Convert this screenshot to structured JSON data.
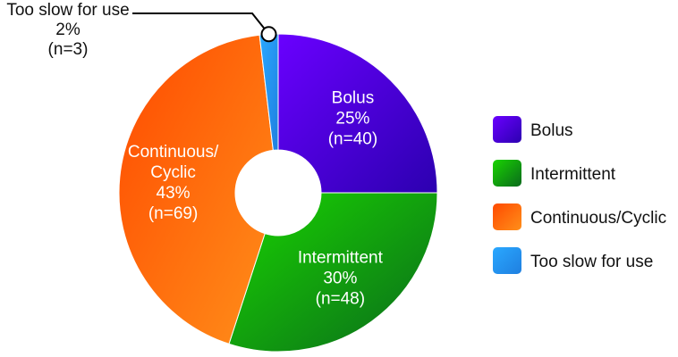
{
  "chart_data": {
    "type": "pie",
    "style": "donut",
    "legend_position": "right",
    "slices": [
      {
        "name": "Bolus",
        "value": 40,
        "percent": "25%",
        "count_label": "(n=40)",
        "label_lines": [
          "Bolus"
        ],
        "color": "#6a00ff",
        "color_dark": "#2c00b0"
      },
      {
        "name": "Intermittent",
        "value": 48,
        "percent": "30%",
        "count_label": "(n=48)",
        "label_lines": [
          "Intermittent"
        ],
        "color": "#19d400",
        "color_dark": "#0a6a1c"
      },
      {
        "name": "Continuous/Cyclic",
        "value": 69,
        "percent": "43%",
        "count_label": "(n=69)",
        "label_lines": [
          "Continuous/",
          "Cyclic"
        ],
        "color": "#ff4a00",
        "color_dark": "#ff8f1a"
      },
      {
        "name": "Too slow for use",
        "value": 3,
        "percent": "2%",
        "count_label": "(n=3)",
        "label_lines": [
          "Too slow for use"
        ],
        "color": "#2aa8ff",
        "color_dark": "#1f7fe0"
      }
    ],
    "legend": [
      "Bolus",
      "Intermittent",
      "Continuous/Cyclic",
      "Too slow for use"
    ]
  }
}
